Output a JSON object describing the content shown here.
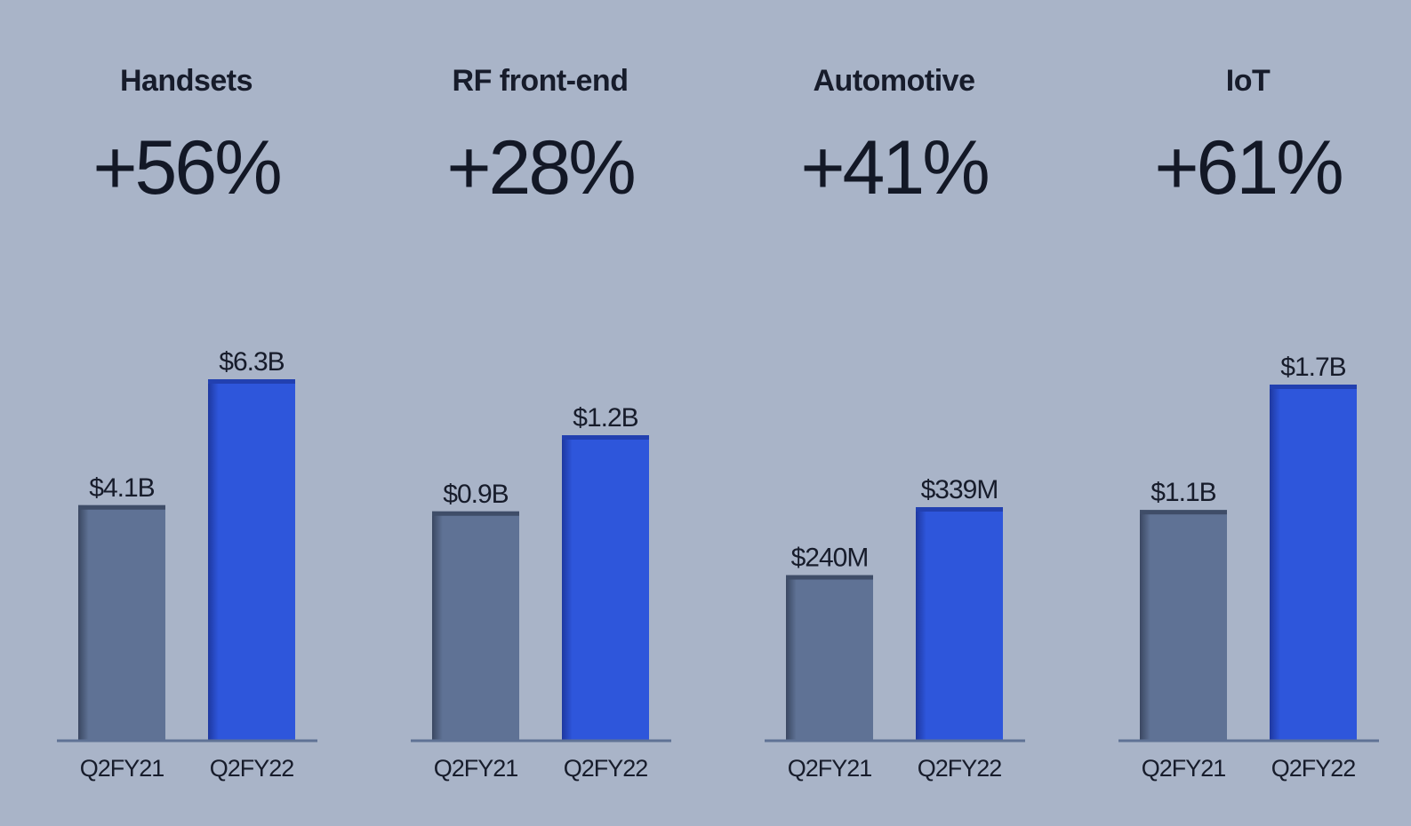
{
  "chart_data": [
    {
      "type": "bar",
      "title": "Handsets",
      "growth": "+56%",
      "categories": [
        "Q2FY21",
        "Q2FY22"
      ],
      "values": [
        4.1,
        6.3
      ],
      "value_labels": [
        "$4.1B",
        "$6.3B"
      ],
      "unit": "B"
    },
    {
      "type": "bar",
      "title": "RF front-end",
      "growth": "+28%",
      "categories": [
        "Q2FY21",
        "Q2FY22"
      ],
      "values": [
        0.9,
        1.2
      ],
      "value_labels": [
        "$0.9B",
        "$1.2B"
      ],
      "unit": "B"
    },
    {
      "type": "bar",
      "title": "Automotive",
      "growth": "+41%",
      "categories": [
        "Q2FY21",
        "Q2FY22"
      ],
      "values": [
        240,
        339
      ],
      "value_labels": [
        "$240M",
        "$339M"
      ],
      "unit": "M"
    },
    {
      "type": "bar",
      "title": "IoT",
      "growth": "+61%",
      "categories": [
        "Q2FY21",
        "Q2FY22"
      ],
      "values": [
        1.1,
        1.7
      ],
      "value_labels": [
        "$1.1B",
        "$1.7B"
      ],
      "unit": "B"
    }
  ],
  "colors": {
    "background": "#a9b4c8",
    "prior_bar": "#5f7295",
    "current_bar": "#2e56db",
    "axis": "#5f7295"
  }
}
